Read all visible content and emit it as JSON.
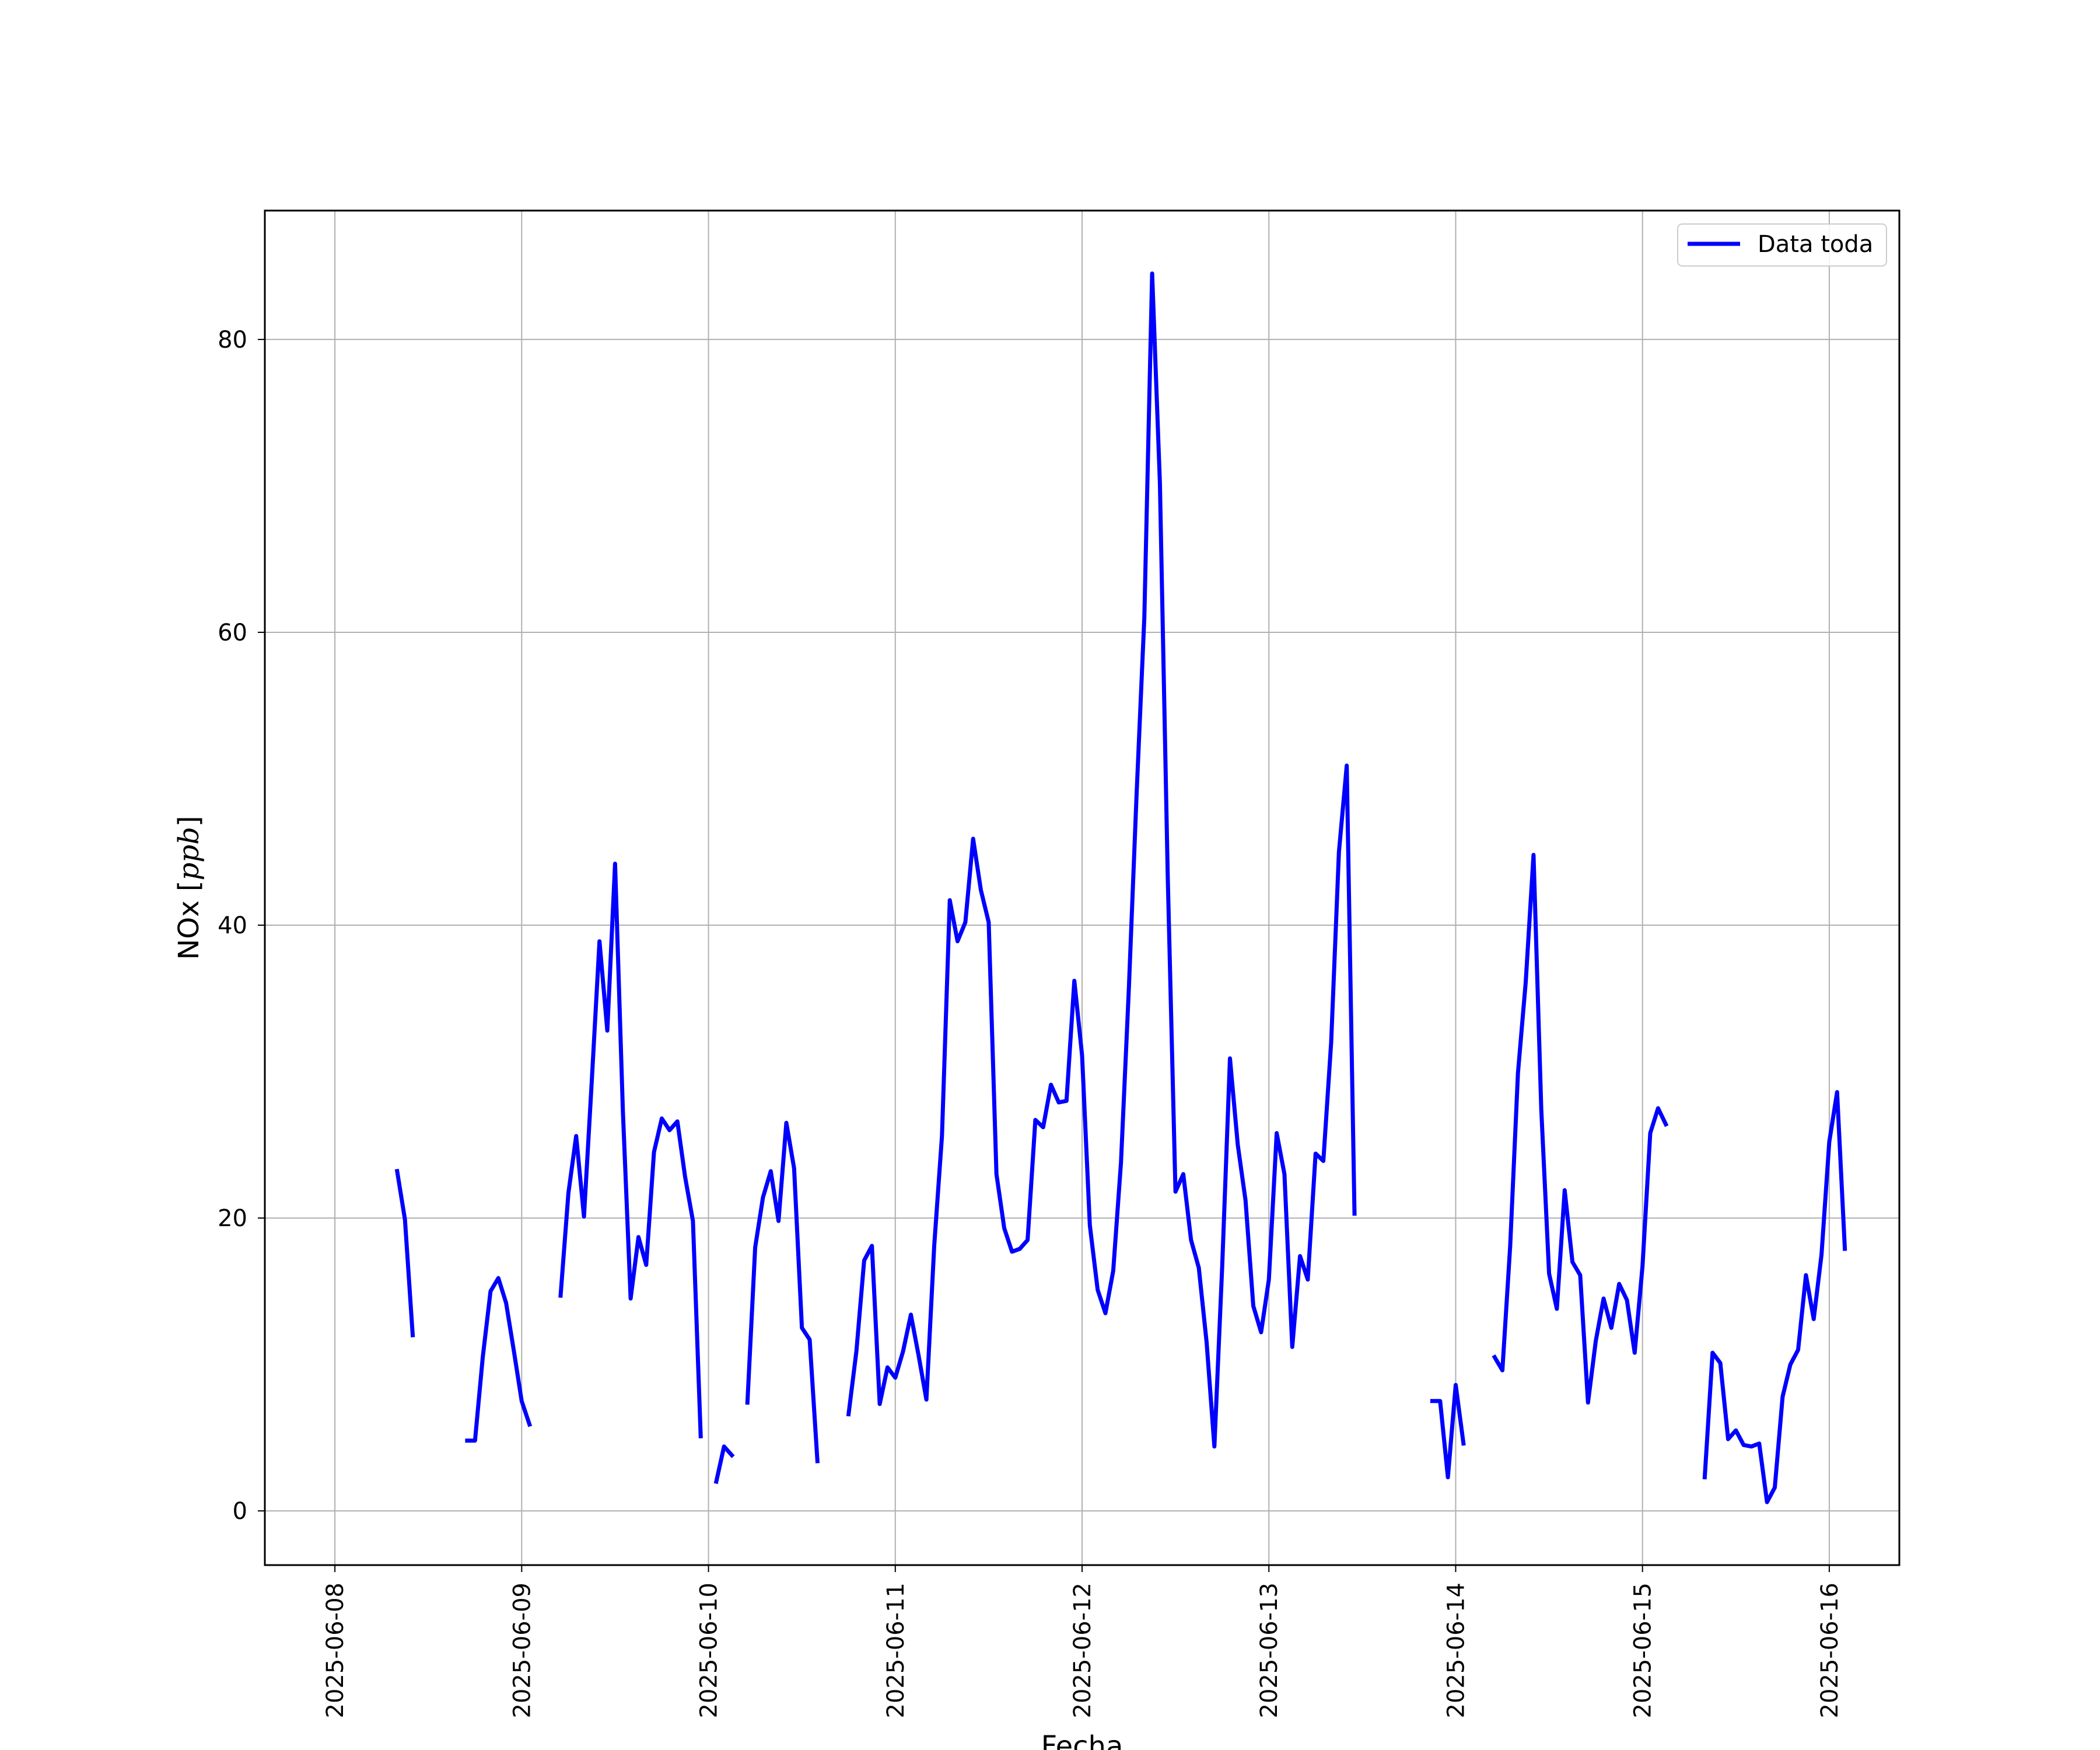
{
  "chart_data": {
    "type": "line",
    "title": "",
    "xlabel": "Fecha",
    "ylabel": "NOx",
    "ylabel_unit": "ppb",
    "xlim": [
      "2025-06-07T15:00",
      "2025-06-16T09:00"
    ],
    "ylim": [
      -3.7,
      88.8
    ],
    "x_tick_labels": [
      "2025-06-08",
      "2025-06-09",
      "2025-06-10",
      "2025-06-11",
      "2025-06-12",
      "2025-06-13",
      "2025-06-14",
      "2025-06-15",
      "2025-06-16"
    ],
    "y_ticks": [
      0,
      20,
      40,
      60,
      80
    ],
    "grid": true,
    "legend_position": "upper-right",
    "series": [
      {
        "name": "Data toda",
        "color": "#0000ff",
        "points": [
          [
            "2025-06-08T08:00",
            23.2
          ],
          [
            "2025-06-08T09:00",
            19.9
          ],
          [
            "2025-06-08T10:00",
            12.0
          ],
          [
            "2025-06-08T11:00",
            null
          ],
          [
            "2025-06-08T17:00",
            4.8
          ],
          [
            "2025-06-08T18:00",
            4.8
          ],
          [
            "2025-06-08T19:00",
            10.5
          ],
          [
            "2025-06-08T20:00",
            15.0
          ],
          [
            "2025-06-08T21:00",
            15.9
          ],
          [
            "2025-06-08T22:00",
            14.2
          ],
          [
            "2025-06-08T23:00",
            10.9
          ],
          [
            "2025-06-09T00:00",
            7.5
          ],
          [
            "2025-06-09T01:00",
            5.9
          ],
          [
            "2025-06-09T02:00",
            null
          ],
          [
            "2025-06-09T05:00",
            14.7
          ],
          [
            "2025-06-09T06:00",
            21.7
          ],
          [
            "2025-06-09T07:00",
            25.6
          ],
          [
            "2025-06-09T08:00",
            20.1
          ],
          [
            "2025-06-09T09:00",
            29.3
          ],
          [
            "2025-06-09T10:00",
            38.9
          ],
          [
            "2025-06-09T11:00",
            32.8
          ],
          [
            "2025-06-09T12:00",
            44.2
          ],
          [
            "2025-06-09T13:00",
            27.3
          ],
          [
            "2025-06-09T14:00",
            14.5
          ],
          [
            "2025-06-09T15:00",
            18.7
          ],
          [
            "2025-06-09T16:00",
            16.8
          ],
          [
            "2025-06-09T17:00",
            24.5
          ],
          [
            "2025-06-09T18:00",
            26.8
          ],
          [
            "2025-06-09T19:00",
            26.0
          ],
          [
            "2025-06-09T20:00",
            26.6
          ],
          [
            "2025-06-09T21:00",
            22.8
          ],
          [
            "2025-06-09T22:00",
            19.8
          ],
          [
            "2025-06-09T23:00",
            5.1
          ],
          [
            "2025-06-10T00:00",
            null
          ],
          [
            "2025-06-10T01:00",
            2.0
          ],
          [
            "2025-06-10T02:00",
            4.4
          ],
          [
            "2025-06-10T03:00",
            3.8
          ],
          [
            "2025-06-10T04:00",
            null
          ],
          [
            "2025-06-10T05:00",
            7.4
          ],
          [
            "2025-06-10T06:00",
            18.0
          ],
          [
            "2025-06-10T07:00",
            21.4
          ],
          [
            "2025-06-10T08:00",
            23.2
          ],
          [
            "2025-06-10T09:00",
            19.8
          ],
          [
            "2025-06-10T10:00",
            26.5
          ],
          [
            "2025-06-10T11:00",
            23.4
          ],
          [
            "2025-06-10T12:00",
            12.5
          ],
          [
            "2025-06-10T13:00",
            11.7
          ],
          [
            "2025-06-10T14:00",
            3.4
          ],
          [
            "2025-06-10T15:00",
            null
          ],
          [
            "2025-06-10T18:00",
            6.6
          ],
          [
            "2025-06-10T19:00",
            10.9
          ],
          [
            "2025-06-10T20:00",
            17.1
          ],
          [
            "2025-06-10T21:00",
            18.1
          ],
          [
            "2025-06-10T22:00",
            7.3
          ],
          [
            "2025-06-10T23:00",
            9.8
          ],
          [
            "2025-06-11T00:00",
            9.1
          ],
          [
            "2025-06-11T01:00",
            10.9
          ],
          [
            "2025-06-11T02:00",
            13.4
          ],
          [
            "2025-06-11T03:00",
            10.6
          ],
          [
            "2025-06-11T04:00",
            7.6
          ],
          [
            "2025-06-11T05:00",
            18.1
          ],
          [
            "2025-06-11T06:00",
            25.6
          ],
          [
            "2025-06-11T07:00",
            41.7
          ],
          [
            "2025-06-11T08:00",
            38.9
          ],
          [
            "2025-06-11T09:00",
            40.2
          ],
          [
            "2025-06-11T10:00",
            45.9
          ],
          [
            "2025-06-11T11:00",
            42.4
          ],
          [
            "2025-06-11T12:00",
            40.2
          ],
          [
            "2025-06-11T13:00",
            23.0
          ],
          [
            "2025-06-11T14:00",
            19.3
          ],
          [
            "2025-06-11T15:00",
            17.7
          ],
          [
            "2025-06-11T16:00",
            17.9
          ],
          [
            "2025-06-11T17:00",
            18.5
          ],
          [
            "2025-06-11T18:00",
            26.7
          ],
          [
            "2025-06-11T19:00",
            26.2
          ],
          [
            "2025-06-11T20:00",
            29.1
          ],
          [
            "2025-06-11T21:00",
            27.9
          ],
          [
            "2025-06-11T22:00",
            28.0
          ],
          [
            "2025-06-11T23:00",
            36.2
          ],
          [
            "2025-06-12T00:00",
            31.1
          ],
          [
            "2025-06-12T01:00",
            19.5
          ],
          [
            "2025-06-12T02:00",
            15.1
          ],
          [
            "2025-06-12T03:00",
            13.5
          ],
          [
            "2025-06-12T04:00",
            16.4
          ],
          [
            "2025-06-12T05:00",
            23.8
          ],
          [
            "2025-06-12T06:00",
            35.6
          ],
          [
            "2025-06-12T07:00",
            48.9
          ],
          [
            "2025-06-12T08:00",
            61.0
          ],
          [
            "2025-06-12T09:00",
            84.5
          ],
          [
            "2025-06-12T10:00",
            70.2
          ],
          [
            "2025-06-12T11:00",
            43.4
          ],
          [
            "2025-06-12T12:00",
            21.8
          ],
          [
            "2025-06-12T13:00",
            23.0
          ],
          [
            "2025-06-12T14:00",
            18.5
          ],
          [
            "2025-06-12T15:00",
            16.6
          ],
          [
            "2025-06-12T16:00",
            11.5
          ],
          [
            "2025-06-12T17:00",
            4.4
          ],
          [
            "2025-06-12T18:00",
            16.7
          ],
          [
            "2025-06-12T19:00",
            30.9
          ],
          [
            "2025-06-12T20:00",
            25.0
          ],
          [
            "2025-06-12T21:00",
            21.2
          ],
          [
            "2025-06-12T22:00",
            14.0
          ],
          [
            "2025-06-12T23:00",
            12.2
          ],
          [
            "2025-06-13T00:00",
            15.8
          ],
          [
            "2025-06-13T01:00",
            25.8
          ],
          [
            "2025-06-13T02:00",
            23.0
          ],
          [
            "2025-06-13T03:00",
            11.2
          ],
          [
            "2025-06-13T04:00",
            17.4
          ],
          [
            "2025-06-13T05:00",
            15.8
          ],
          [
            "2025-06-13T06:00",
            24.4
          ],
          [
            "2025-06-13T07:00",
            23.9
          ],
          [
            "2025-06-13T08:00",
            32.0
          ],
          [
            "2025-06-13T09:00",
            45.0
          ],
          [
            "2025-06-13T10:00",
            50.9
          ],
          [
            "2025-06-13T11:00",
            20.3
          ],
          [
            "2025-06-13T12:00",
            null
          ],
          [
            "2025-06-13T21:00",
            7.5
          ],
          [
            "2025-06-13T22:00",
            7.5
          ],
          [
            "2025-06-13T23:00",
            2.3
          ],
          [
            "2025-06-14T00:00",
            8.6
          ],
          [
            "2025-06-14T01:00",
            4.6
          ],
          [
            "2025-06-14T02:00",
            null
          ],
          [
            "2025-06-14T05:00",
            10.5
          ],
          [
            "2025-06-14T06:00",
            9.6
          ],
          [
            "2025-06-14T07:00",
            18.1
          ],
          [
            "2025-06-14T08:00",
            29.9
          ],
          [
            "2025-06-14T09:00",
            36.1
          ],
          [
            "2025-06-14T10:00",
            44.8
          ],
          [
            "2025-06-14T11:00",
            27.4
          ],
          [
            "2025-06-14T12:00",
            16.2
          ],
          [
            "2025-06-14T13:00",
            13.8
          ],
          [
            "2025-06-14T14:00",
            21.9
          ],
          [
            "2025-06-14T15:00",
            17.0
          ],
          [
            "2025-06-14T16:00",
            16.1
          ],
          [
            "2025-06-14T17:00",
            7.4
          ],
          [
            "2025-06-14T18:00",
            11.6
          ],
          [
            "2025-06-14T19:00",
            14.5
          ],
          [
            "2025-06-14T20:00",
            12.5
          ],
          [
            "2025-06-14T21:00",
            15.5
          ],
          [
            "2025-06-14T22:00",
            14.4
          ],
          [
            "2025-06-14T23:00",
            10.8
          ],
          [
            "2025-06-15T00:00",
            16.7
          ],
          [
            "2025-06-15T01:00",
            25.8
          ],
          [
            "2025-06-15T02:00",
            27.5
          ],
          [
            "2025-06-15T03:00",
            26.4
          ],
          [
            "2025-06-15T04:00",
            null
          ],
          [
            "2025-06-15T08:00",
            2.3
          ],
          [
            "2025-06-15T09:00",
            10.8
          ],
          [
            "2025-06-15T10:00",
            10.1
          ],
          [
            "2025-06-15T11:00",
            4.9
          ],
          [
            "2025-06-15T12:00",
            5.5
          ],
          [
            "2025-06-15T13:00",
            4.5
          ],
          [
            "2025-06-15T14:00",
            4.4
          ],
          [
            "2025-06-15T15:00",
            4.6
          ],
          [
            "2025-06-15T16:00",
            0.6
          ],
          [
            "2025-06-15T17:00",
            1.6
          ],
          [
            "2025-06-15T18:00",
            7.8
          ],
          [
            "2025-06-15T19:00",
            10.0
          ],
          [
            "2025-06-15T20:00",
            11.0
          ],
          [
            "2025-06-15T21:00",
            16.1
          ],
          [
            "2025-06-15T22:00",
            13.1
          ],
          [
            "2025-06-15T23:00",
            17.5
          ],
          [
            "2025-06-16T00:00",
            25.2
          ],
          [
            "2025-06-16T01:00",
            28.6
          ],
          [
            "2025-06-16T02:00",
            17.9
          ]
        ]
      }
    ]
  }
}
